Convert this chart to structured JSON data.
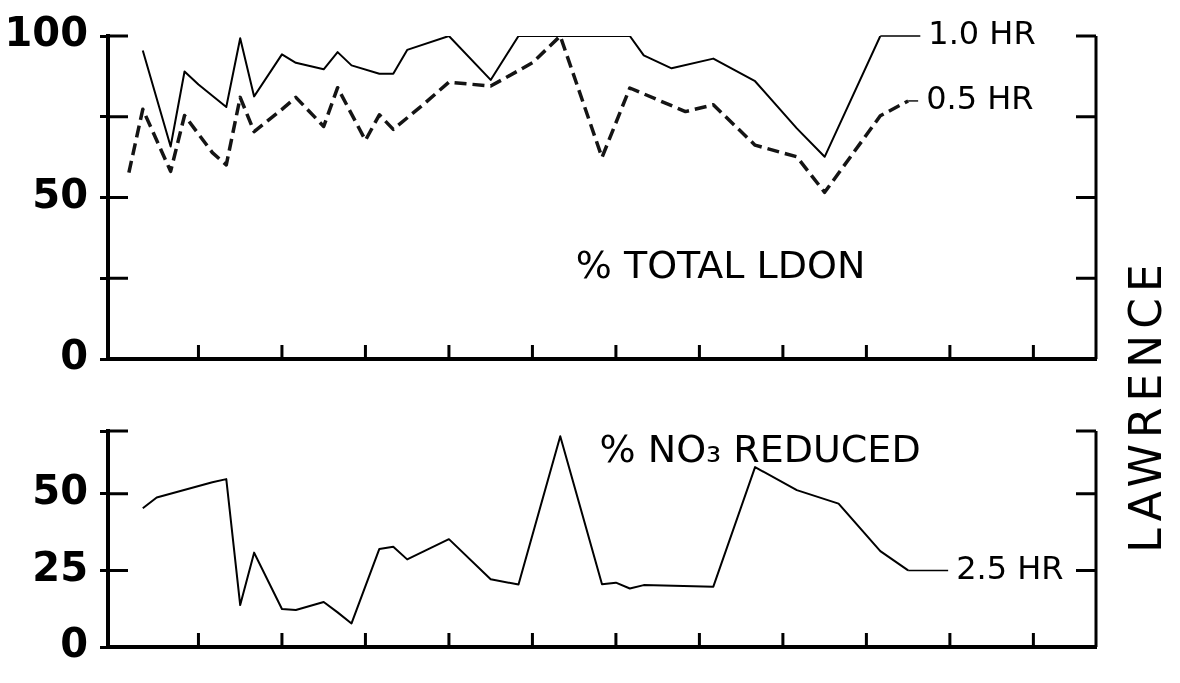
{
  "chart_data": [
    {
      "type": "line",
      "annotations": [
        "% TOTAL LDON",
        "LAWRENCE"
      ],
      "categories": [
        null,
        null,
        null,
        null,
        null,
        null,
        null,
        null,
        null,
        null,
        null,
        null,
        null,
        null,
        null,
        null,
        null,
        null,
        null,
        null,
        null,
        null,
        null,
        null,
        null,
        null,
        null,
        null,
        null,
        null,
        null,
        null,
        null,
        null,
        null,
        null,
        null,
        null,
        null,
        null,
        null,
        null,
        null,
        null,
        null,
        null,
        null,
        null,
        null,
        null,
        null,
        null,
        null,
        null,
        null,
        null,
        null,
        null,
        null,
        null,
        null,
        null,
        null,
        null,
        null,
        null,
        null,
        null,
        null,
        null,
        null
      ],
      "ylim": [
        0,
        100
      ],
      "yticks": [
        0,
        {
          "value": 25,
          "label": null
        },
        50,
        {
          "value": 75,
          "label": null
        },
        100
      ],
      "tick_labels": "y",
      "legend": "top right",
      "marker": "none",
      "series": [
        {
          "name": "1.0 HR",
          "color": "#000000",
          "line_style": "solid",
          "values": [
            null,
            null,
            95.5,
            null,
            65.8,
            89,
            85,
            null,
            78,
            99.3,
            81.3,
            null,
            94.3,
            91.7,
            null,
            89.7,
            95,
            90.9,
            null,
            88.3,
            88.3,
            95.7,
            null,
            null,
            100,
            null,
            null,
            86.4,
            null,
            100,
            null,
            null,
            null,
            null,
            null,
            null,
            null,
            100,
            94,
            null,
            90,
            null,
            null,
            93,
            null,
            null,
            86,
            null,
            null,
            71.4,
            null,
            62.6,
            null,
            null,
            null,
            100,
            null,
            null,
            null,
            null,
            null,
            null,
            null,
            null,
            null,
            null,
            null,
            null,
            null,
            null,
            null
          ]
        },
        {
          "name": "0.5 HR",
          "color": "#141414",
          "line_style": "dashed",
          "values": [
            null,
            57.7,
            77.3,
            null,
            58.1,
            75.4,
            null,
            63.9,
            60.1,
            81,
            70.4,
            null,
            77.3,
            81,
            null,
            72,
            84,
            null,
            67.7,
            75.6,
            71.1,
            null,
            78.2,
            null,
            85.7,
            null,
            null,
            84.5,
            null,
            null,
            91.7,
            null,
            100,
            null,
            null,
            62.4,
            null,
            83.9,
            null,
            null,
            null,
            76.6,
            null,
            78.7,
            null,
            null,
            66.2,
            null,
            null,
            62.6,
            null,
            51.6,
            null,
            null,
            null,
            75.3,
            null,
            79.9,
            null,
            null,
            null,
            null,
            null,
            null,
            null,
            null,
            null,
            null,
            null,
            null,
            null
          ]
        }
      ]
    },
    {
      "type": "line",
      "annotations": [
        "% NO₃ REDUCED"
      ],
      "categories": [
        null,
        null,
        null,
        null,
        null,
        null,
        null,
        null,
        null,
        null,
        null,
        null,
        null,
        null,
        null,
        null,
        null,
        null,
        null,
        null,
        null,
        null,
        null,
        null,
        null,
        null,
        null,
        null,
        null,
        null,
        null,
        null,
        null,
        null,
        null,
        null,
        null,
        null,
        null,
        null,
        null,
        null,
        null,
        null,
        null,
        null,
        null,
        null,
        null,
        null,
        null,
        null,
        null,
        null,
        null,
        null,
        null,
        null,
        null,
        null,
        null,
        null,
        null,
        null,
        null,
        null,
        null,
        null,
        null,
        null,
        null
      ],
      "ylim": [
        0,
        70.5
      ],
      "yticks": [
        0,
        25,
        50,
        {
          "value": 70.5,
          "label": null
        }
      ],
      "tick_labels": "y",
      "legend": "right",
      "marker": "none",
      "series": [
        {
          "name": "2.5 HR",
          "color": "#000000",
          "line_style": "solid",
          "values": [
            null,
            null,
            45.3,
            48.8,
            null,
            null,
            null,
            53.8,
            54.8,
            13.7,
            30.8,
            null,
            12.4,
            12.1,
            null,
            14.7,
            11.3,
            7.7,
            null,
            32,
            32.7,
            28.6,
            null,
            null,
            35.2,
            null,
            null,
            22.1,
            null,
            20.4,
            null,
            null,
            68.8,
            null,
            null,
            20.5,
            21,
            19.1,
            20.2,
            null,
            null,
            null,
            null,
            19.7,
            null,
            null,
            58.7,
            null,
            null,
            51.2,
            null,
            null,
            46.8,
            null,
            null,
            31.3,
            null,
            25,
            null,
            null,
            null,
            null,
            null,
            null,
            null,
            null,
            null,
            null,
            null,
            null,
            null
          ]
        }
      ]
    }
  ]
}
